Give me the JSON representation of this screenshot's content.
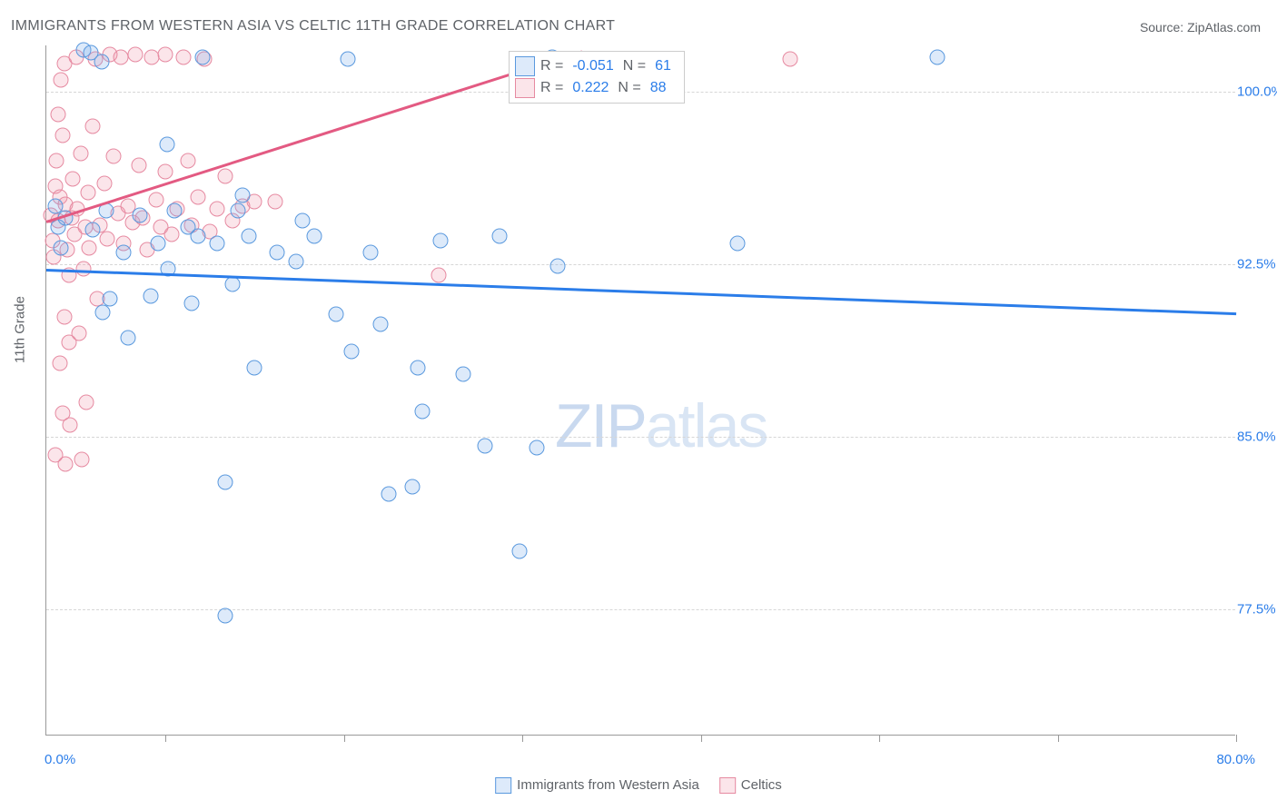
{
  "title": "IMMIGRANTS FROM WESTERN ASIA VS CELTIC 11TH GRADE CORRELATION CHART",
  "source_label": "Source: ZipAtlas.com",
  "ylabel": "11th Grade",
  "watermark": {
    "bold": "ZIP",
    "light": "atlas"
  },
  "chart": {
    "type": "scatter",
    "background_color": "#ffffff",
    "grid_color": "#d6d6d6",
    "axis_color": "#999999",
    "xlim": [
      0,
      80
    ],
    "ylim": [
      72,
      102
    ],
    "yticks": [
      77.5,
      85.0,
      92.5,
      100.0
    ],
    "ytick_labels": [
      "77.5%",
      "85.0%",
      "92.5%",
      "100.0%"
    ],
    "xtick_positions": [
      8,
      20,
      32,
      44,
      56,
      68,
      80
    ],
    "xaxis_min_label": "0.0%",
    "xaxis_max_label": "80.0%",
    "marker_radius": 8.5,
    "marker_stroke_width": 1.5,
    "series": [
      {
        "name": "Immigrants from Western Asia",
        "short": "blue",
        "fill": "rgba(120,170,235,0.25)",
        "stroke": "#5a99de",
        "trend_color": "#2b7de9",
        "trend_width": 2.5,
        "R": "-0.051",
        "N": "61",
        "trend": {
          "x1": 0,
          "y1": 92.3,
          "x2": 80,
          "y2": 90.4
        },
        "points": [
          [
            0.8,
            94.1
          ],
          [
            0.6,
            95.0
          ],
          [
            1.0,
            93.2
          ],
          [
            1.3,
            94.5
          ],
          [
            2.5,
            101.8
          ],
          [
            3.0,
            101.7
          ],
          [
            3.1,
            94.0
          ],
          [
            3.7,
            101.3
          ],
          [
            4.0,
            94.8
          ],
          [
            4.3,
            91.0
          ],
          [
            3.8,
            90.4
          ],
          [
            5.2,
            93.0
          ],
          [
            5.5,
            89.3
          ],
          [
            6.3,
            94.6
          ],
          [
            7.5,
            93.4
          ],
          [
            7.0,
            91.1
          ],
          [
            8.2,
            92.3
          ],
          [
            8.6,
            94.8
          ],
          [
            8.1,
            97.7
          ],
          [
            9.5,
            94.1
          ],
          [
            9.8,
            90.8
          ],
          [
            10.5,
            101.5
          ],
          [
            10.2,
            93.7
          ],
          [
            11.5,
            93.4
          ],
          [
            12.5,
            91.6
          ],
          [
            12.9,
            94.8
          ],
          [
            13.2,
            95.5
          ],
          [
            13.6,
            93.7
          ],
          [
            14.0,
            88.0
          ],
          [
            12.0,
            83.0
          ],
          [
            12.0,
            77.2
          ],
          [
            15.5,
            93.0
          ],
          [
            16.8,
            92.6
          ],
          [
            17.2,
            94.4
          ],
          [
            18.0,
            93.7
          ],
          [
            19.5,
            90.3
          ],
          [
            20.3,
            101.4
          ],
          [
            20.5,
            88.7
          ],
          [
            21.8,
            93.0
          ],
          [
            22.5,
            89.9
          ],
          [
            23.0,
            82.5
          ],
          [
            24.6,
            82.8
          ],
          [
            25.0,
            88.0
          ],
          [
            25.3,
            86.1
          ],
          [
            26.5,
            93.5
          ],
          [
            28.0,
            87.7
          ],
          [
            29.5,
            84.6
          ],
          [
            30.5,
            93.7
          ],
          [
            31.8,
            80.0
          ],
          [
            33.0,
            84.5
          ],
          [
            34.0,
            101.5
          ],
          [
            34.4,
            92.4
          ],
          [
            41.0,
            101.3
          ],
          [
            46.5,
            93.4
          ],
          [
            59.9,
            101.5
          ]
        ]
      },
      {
        "name": "Celtics",
        "short": "pink",
        "fill": "rgba(240,150,170,0.25)",
        "stroke": "#e68aa1",
        "trend_color": "#e35a82",
        "trend_width": 2.5,
        "R": "0.222",
        "N": "88",
        "trend": {
          "x1": 0,
          "y1": 94.4,
          "x2": 36,
          "y2": 101.8
        },
        "points": [
          [
            0.4,
            93.5
          ],
          [
            0.3,
            94.6
          ],
          [
            0.6,
            95.9
          ],
          [
            0.5,
            92.8
          ],
          [
            0.8,
            94.4
          ],
          [
            0.9,
            95.4
          ],
          [
            0.7,
            97.0
          ],
          [
            1.1,
            98.1
          ],
          [
            0.8,
            99.0
          ],
          [
            1.0,
            100.5
          ],
          [
            1.2,
            101.2
          ],
          [
            1.3,
            95.1
          ],
          [
            1.4,
            93.1
          ],
          [
            1.5,
            92.0
          ],
          [
            1.7,
            94.5
          ],
          [
            1.8,
            96.2
          ],
          [
            1.9,
            93.8
          ],
          [
            2.1,
            94.9
          ],
          [
            2.3,
            97.3
          ],
          [
            2.0,
            101.5
          ],
          [
            2.5,
            92.3
          ],
          [
            2.6,
            94.1
          ],
          [
            2.8,
            95.6
          ],
          [
            2.9,
            93.2
          ],
          [
            3.1,
            98.5
          ],
          [
            3.3,
            101.4
          ],
          [
            3.4,
            91.0
          ],
          [
            1.2,
            90.2
          ],
          [
            1.5,
            89.1
          ],
          [
            2.2,
            89.5
          ],
          [
            0.9,
            88.2
          ],
          [
            2.7,
            86.5
          ],
          [
            1.1,
            86.0
          ],
          [
            1.6,
            85.5
          ],
          [
            2.4,
            84.0
          ],
          [
            1.3,
            83.8
          ],
          [
            3.6,
            94.2
          ],
          [
            3.9,
            96.0
          ],
          [
            4.1,
            93.6
          ],
          [
            4.3,
            101.6
          ],
          [
            4.5,
            97.2
          ],
          [
            4.8,
            94.7
          ],
          [
            0.6,
            84.2
          ],
          [
            5.0,
            101.5
          ],
          [
            5.2,
            93.4
          ],
          [
            5.5,
            95.0
          ],
          [
            5.8,
            94.3
          ],
          [
            6.0,
            101.6
          ],
          [
            6.2,
            96.8
          ],
          [
            6.5,
            94.5
          ],
          [
            6.8,
            93.1
          ],
          [
            7.1,
            101.5
          ],
          [
            7.4,
            95.3
          ],
          [
            7.7,
            94.1
          ],
          [
            8.0,
            101.6
          ],
          [
            8.0,
            96.5
          ],
          [
            8.4,
            93.8
          ],
          [
            8.8,
            94.9
          ],
          [
            9.2,
            101.5
          ],
          [
            9.5,
            97.0
          ],
          [
            9.8,
            94.2
          ],
          [
            10.2,
            95.4
          ],
          [
            10.6,
            101.4
          ],
          [
            11.0,
            93.9
          ],
          [
            11.5,
            94.9
          ],
          [
            12.0,
            96.3
          ],
          [
            12.5,
            94.4
          ],
          [
            13.2,
            95.0
          ],
          [
            14.0,
            95.2
          ],
          [
            15.4,
            95.2
          ],
          [
            26.4,
            92.0
          ],
          [
            50.0,
            101.4
          ]
        ]
      }
    ]
  },
  "legend_box": {
    "rows": [
      {
        "swatch_fill": "rgba(120,170,235,0.25)",
        "swatch_stroke": "#5a99de",
        "R_label": "R =",
        "R": "-0.051",
        "N_label": "N =",
        "N": "61"
      },
      {
        "swatch_fill": "rgba(240,150,170,0.25)",
        "swatch_stroke": "#e68aa1",
        "R_label": "R =",
        "R": "0.222",
        "N_label": "N =",
        "N": "88"
      }
    ]
  },
  "bottom_legend": [
    {
      "fill": "rgba(120,170,235,0.25)",
      "stroke": "#5a99de",
      "label": "Immigrants from Western Asia"
    },
    {
      "fill": "rgba(240,150,170,0.25)",
      "stroke": "#e68aa1",
      "label": "Celtics"
    }
  ]
}
